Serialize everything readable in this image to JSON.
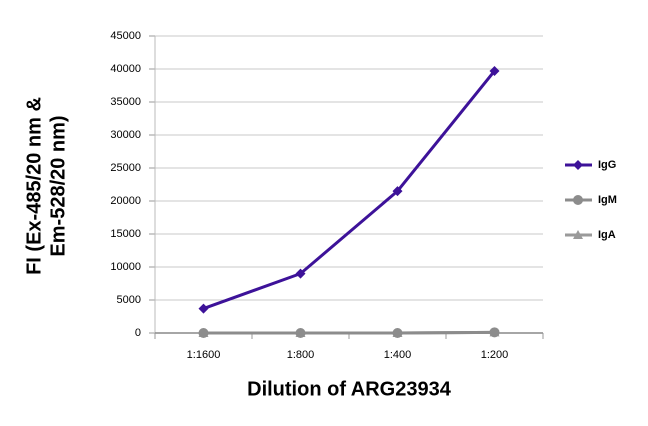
{
  "chart_data": {
    "type": "line",
    "y_label": [
      "FI (Ex-485/20 nm &",
      "Em-528/20 nm)"
    ],
    "x_label": "Dilution of ARG23934",
    "categories": [
      "1:1600",
      "1:800",
      "1:400",
      "1:200"
    ],
    "series": [
      {
        "name": "IgG",
        "color": "#3d1299",
        "marker": "diamond",
        "values": [
          3700,
          9000,
          21500,
          39700
        ]
      },
      {
        "name": "IgM",
        "color": "#8c8c8c",
        "marker": "circle",
        "values": [
          0,
          0,
          0,
          100
        ]
      },
      {
        "name": "IgA",
        "color": "#9a9a9a",
        "marker": "triangle",
        "values": [
          0,
          0,
          0,
          100
        ]
      }
    ],
    "ylim": [
      0,
      45000
    ],
    "yticks": [
      0,
      5000,
      10000,
      15000,
      20000,
      25000,
      30000,
      35000,
      40000,
      45000
    ],
    "grid": true,
    "legend": "right"
  }
}
